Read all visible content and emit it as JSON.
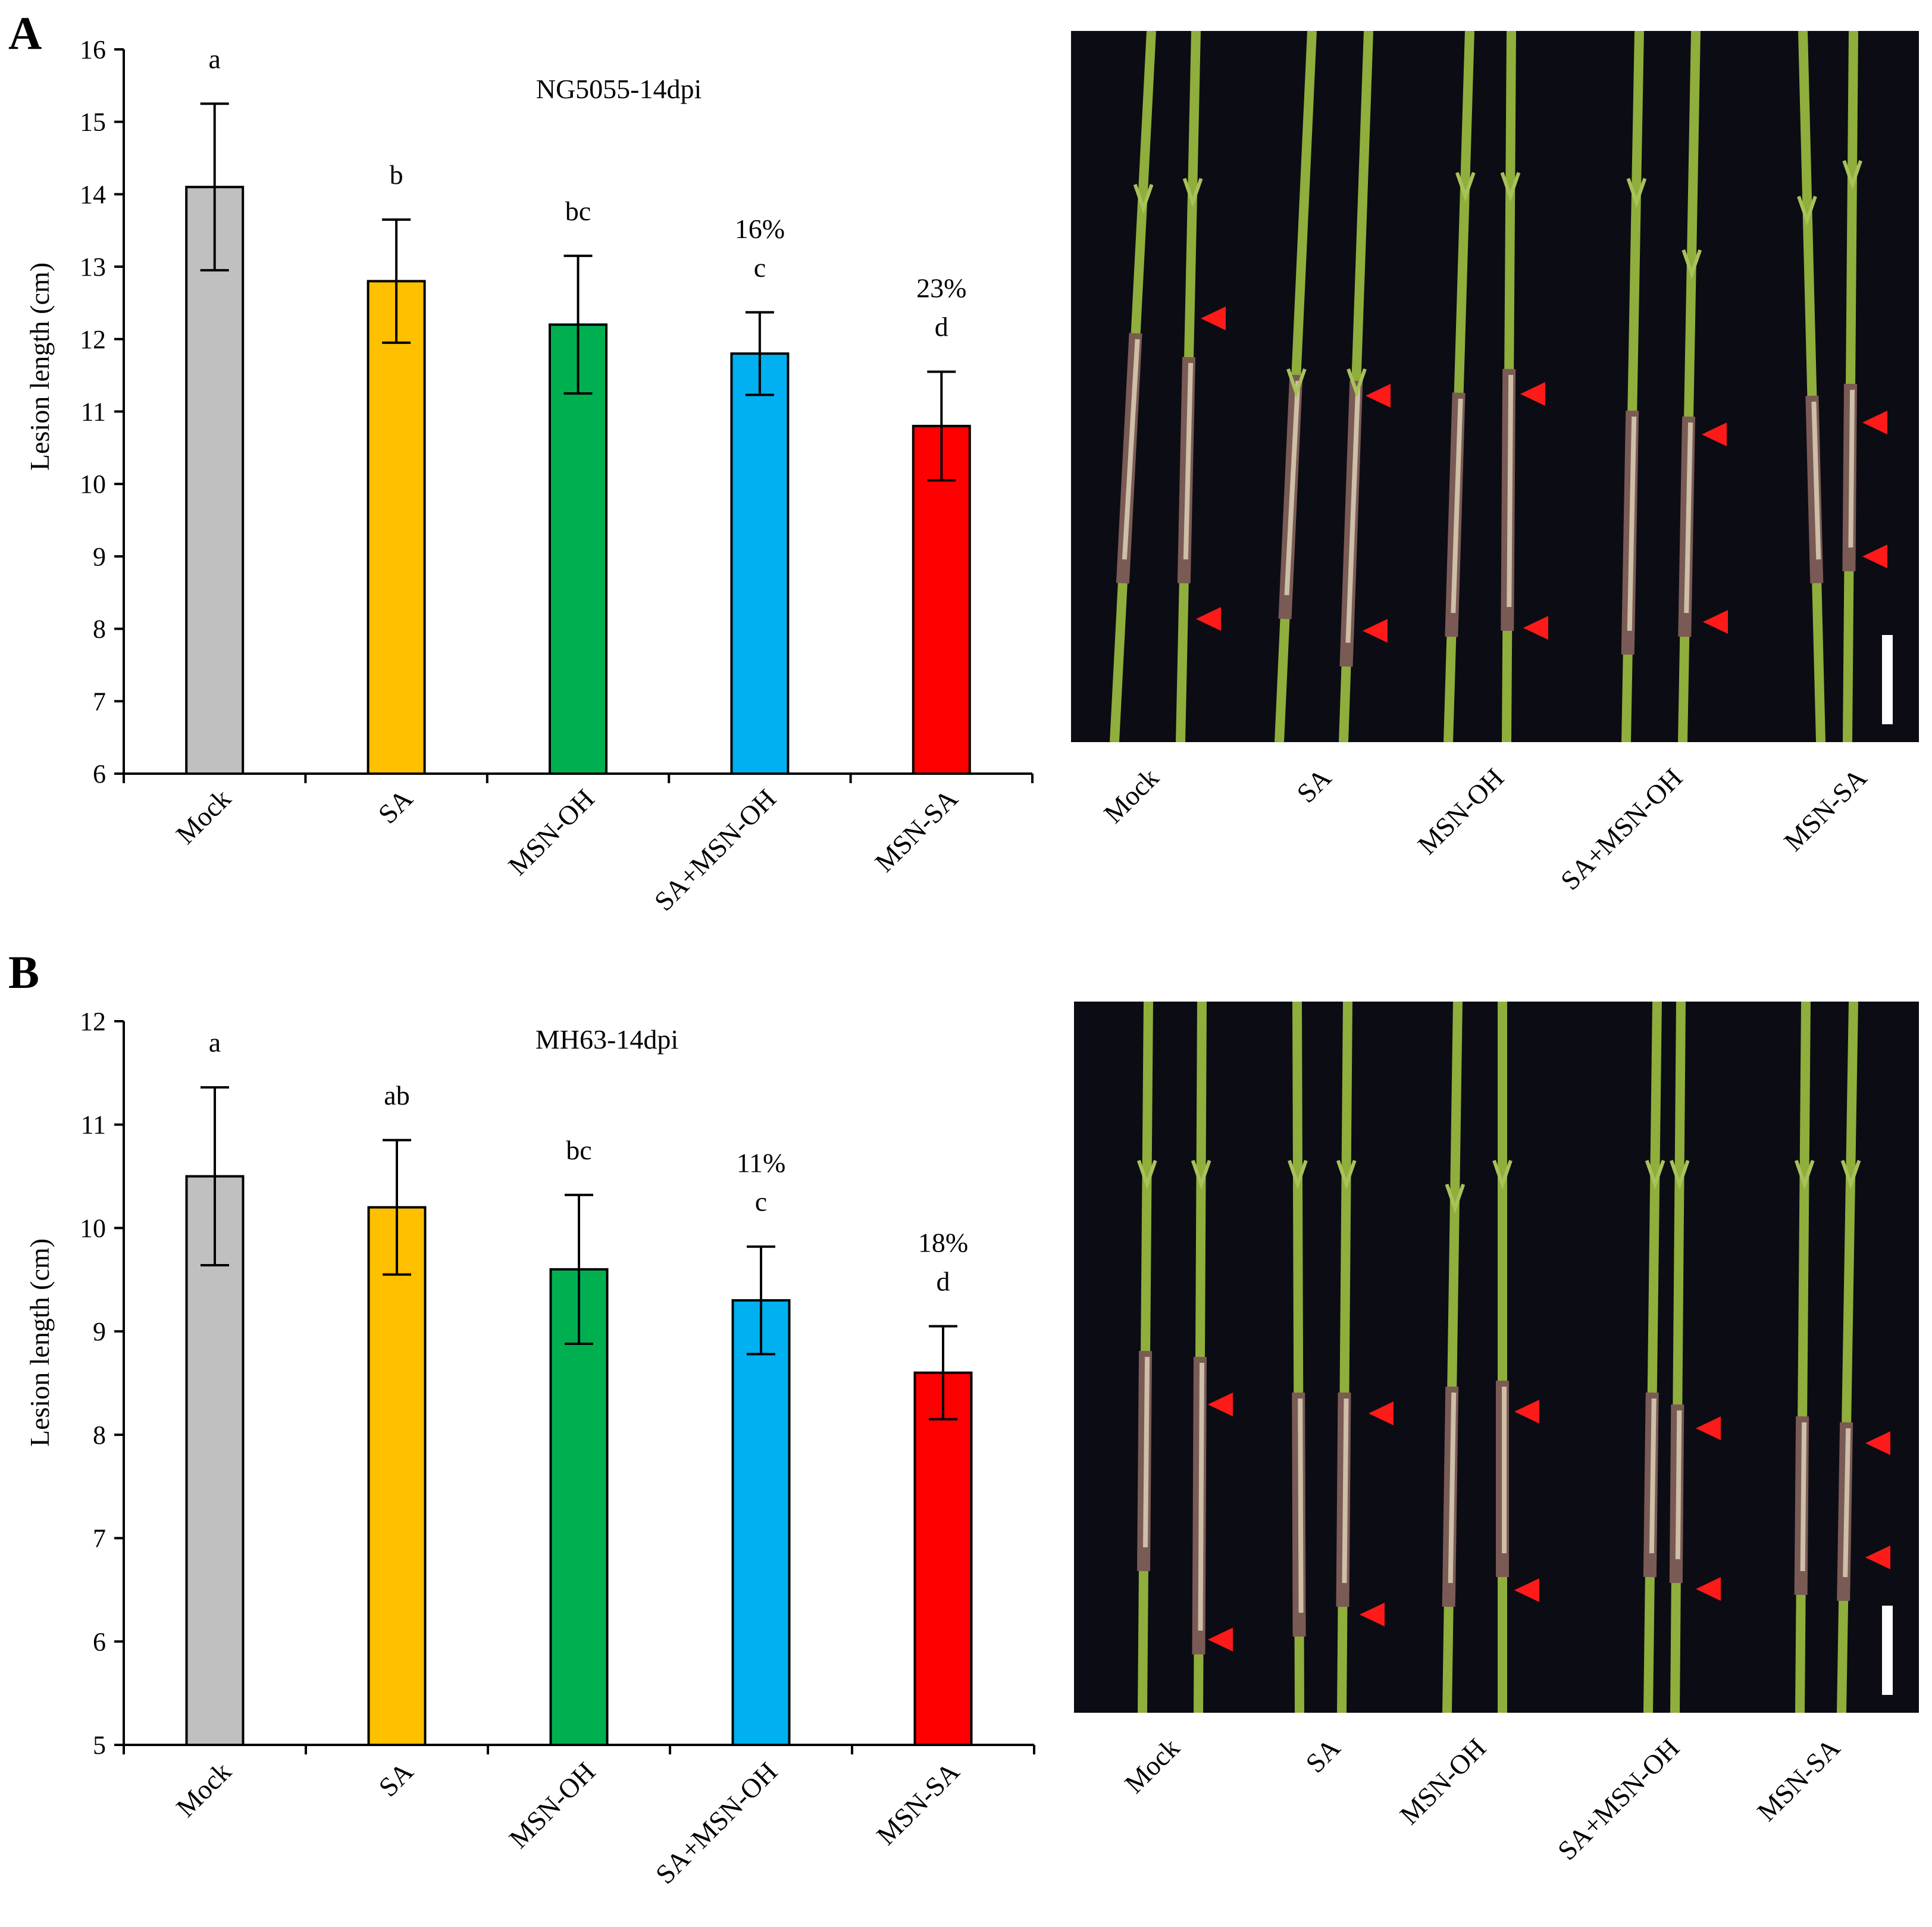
{
  "panels": [
    {
      "letter": "A",
      "photo_labels": [
        "Mock",
        "SA",
        "MSN-OH",
        "SA+MSN-OH",
        "MSN-SA"
      ]
    },
    {
      "letter": "B",
      "photo_labels": [
        "Mock",
        "SA",
        "MSN-OH",
        "SA+MSN-OH",
        "MSN-SA"
      ]
    }
  ],
  "colors": {
    "Mock": "#c0c0c0",
    "SA": "#ffc000",
    "MSN-OH": "#00b050",
    "SA+MSN-OH": "#00b0f0",
    "MSN-SA": "#ff0000",
    "photo_bg": "#0c0c14",
    "stem": "#8fae3c",
    "arrow": "#ff1a1a"
  },
  "chart_data": [
    {
      "type": "bar",
      "title": "NG5055-14dpi",
      "ylabel": "Lesion length (cm)",
      "xlabel": "",
      "ylim": [
        6,
        16
      ],
      "yticks": [
        6,
        7,
        8,
        9,
        10,
        11,
        12,
        13,
        14,
        15,
        16
      ],
      "categories": [
        "Mock",
        "SA",
        "MSN-OH",
        "SA+MSN-OH",
        "MSN-SA"
      ],
      "values": [
        14.1,
        12.8,
        12.2,
        11.8,
        10.8
      ],
      "errors": [
        1.15,
        0.85,
        0.95,
        0.57,
        0.75
      ],
      "significance": [
        "a",
        "b",
        "bc",
        "c",
        "d"
      ],
      "percent_labels": [
        "",
        "",
        "",
        "16%",
        "23%"
      ]
    },
    {
      "type": "bar",
      "title": "MH63-14dpi",
      "ylabel": "Lesion length (cm)",
      "xlabel": "",
      "ylim": [
        5,
        12
      ],
      "yticks": [
        5,
        6,
        7,
        8,
        9,
        10,
        11,
        12
      ],
      "categories": [
        "Mock",
        "SA",
        "MSN-OH",
        "SA+MSN-OH",
        "MSN-SA"
      ],
      "values": [
        10.5,
        10.2,
        9.6,
        9.3,
        8.6
      ],
      "errors": [
        0.86,
        0.65,
        0.72,
        0.52,
        0.45
      ],
      "significance": [
        "a",
        "ab",
        "bc",
        "c",
        "d"
      ],
      "percent_labels": [
        "",
        "",
        "",
        "11%",
        "18%"
      ]
    }
  ]
}
